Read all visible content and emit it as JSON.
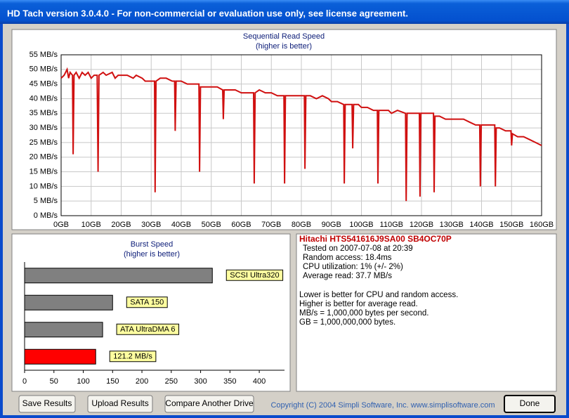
{
  "window": {
    "title": "HD Tach version 3.0.4.0  - For non-commercial or evaluation use only, see license agreement."
  },
  "chart_data": [
    {
      "type": "line",
      "title": "Sequential Read Speed",
      "subtitle": "(higher is better)",
      "color": "#d01010",
      "grid": true,
      "xlim": [
        0,
        160
      ],
      "ylim": [
        0,
        55
      ],
      "xticks": [
        {
          "value": 0,
          "label": "0GB"
        },
        {
          "value": 10,
          "label": "10GB"
        },
        {
          "value": 20,
          "label": "20GB"
        },
        {
          "value": 30,
          "label": "30GB"
        },
        {
          "value": 40,
          "label": "40GB"
        },
        {
          "value": 50,
          "label": "50GB"
        },
        {
          "value": 60,
          "label": "60GB"
        },
        {
          "value": 70,
          "label": "70GB"
        },
        {
          "value": 80,
          "label": "80GB"
        },
        {
          "value": 90,
          "label": "90GB"
        },
        {
          "value": 100,
          "label": "100GB"
        },
        {
          "value": 110,
          "label": "110GB"
        },
        {
          "value": 120,
          "label": "120GB"
        },
        {
          "value": 130,
          "label": "130GB"
        },
        {
          "value": 140,
          "label": "140GB"
        },
        {
          "value": 150,
          "label": "150GB"
        },
        {
          "value": 160,
          "label": "160GB"
        }
      ],
      "yticks": [
        {
          "value": 0,
          "label": "0 MB/s"
        },
        {
          "value": 5,
          "label": "5 MB/s"
        },
        {
          "value": 10,
          "label": "10 MB/s"
        },
        {
          "value": 15,
          "label": "15 MB/s"
        },
        {
          "value": 20,
          "label": "20 MB/s"
        },
        {
          "value": 25,
          "label": "25 MB/s"
        },
        {
          "value": 30,
          "label": "30 MB/s"
        },
        {
          "value": 35,
          "label": "35 MB/s"
        },
        {
          "value": 40,
          "label": "40 MB/s"
        },
        {
          "value": 45,
          "label": "45 MB/s"
        },
        {
          "value": 50,
          "label": "50 MB/s"
        },
        {
          "value": 55,
          "label": "55 MB/s"
        }
      ],
      "x": [
        0,
        1,
        2,
        2.5,
        3,
        3.8,
        4,
        4.3,
        5,
        6,
        7,
        8,
        9,
        10,
        11,
        12,
        12.3,
        12.6,
        14,
        15,
        17,
        18,
        19,
        20,
        22,
        24,
        25,
        27,
        28,
        30,
        31.1,
        31.3,
        31.6,
        33,
        35,
        37,
        37.8,
        38,
        38.3,
        40,
        42,
        44,
        45.9,
        46.1,
        46.4,
        48,
        50,
        52,
        53.8,
        54,
        54.3,
        56,
        58,
        60,
        62,
        64.1,
        64.3,
        64.6,
        66,
        68,
        70,
        72,
        74.2,
        74.4,
        74.7,
        76,
        78,
        80,
        81,
        81.2,
        81.5,
        83,
        85,
        87,
        89,
        90,
        92,
        94.1,
        94.3,
        94.6,
        96,
        96.9,
        97.1,
        97.4,
        99,
        100,
        102,
        104,
        105.3,
        105.5,
        105.8,
        107,
        109,
        110,
        112,
        114.7,
        114.9,
        115.2,
        117,
        119.3,
        119.5,
        119.8,
        122,
        124,
        124.2,
        124.5,
        126,
        128,
        130,
        132,
        134,
        136,
        138,
        139.4,
        139.6,
        139.9,
        141,
        143,
        144.4,
        144.6,
        144.9,
        146,
        148,
        149.8,
        150,
        150.3,
        152,
        154,
        156,
        158,
        160
      ],
      "values": [
        47,
        48,
        50,
        47,
        49,
        48,
        21,
        48,
        49,
        47,
        49,
        48,
        49,
        47,
        48,
        48,
        15,
        48,
        49,
        48,
        49,
        47,
        48,
        48,
        48,
        47,
        48,
        47,
        46,
        46,
        46,
        8,
        46,
        47,
        47,
        46,
        46,
        29,
        46,
        46,
        45,
        45,
        45,
        15,
        44,
        44,
        44,
        44,
        43,
        33,
        43,
        43,
        43,
        42,
        42,
        42,
        11,
        42,
        43,
        42,
        42,
        41,
        41,
        11,
        41,
        41,
        41,
        41,
        41,
        16,
        41,
        41,
        40,
        41,
        40,
        39,
        39,
        38,
        11,
        38,
        38,
        38,
        23,
        38,
        38,
        37,
        37,
        36,
        36,
        11,
        36,
        36,
        36,
        35,
        36,
        35,
        5,
        35,
        35,
        35,
        6.5,
        35,
        35,
        35,
        8,
        34,
        34,
        33,
        33,
        33,
        33,
        32,
        31,
        31,
        10,
        31,
        31,
        31,
        31,
        10,
        30,
        30,
        29,
        29,
        24,
        28,
        27,
        27,
        26,
        25,
        24
      ]
    },
    {
      "type": "hbar",
      "title": "Burst Speed",
      "subtitle": "(higher is better)",
      "categories": [
        "SCSI Ultra320",
        "SATA 150",
        "ATA UltraDMA 6",
        null
      ],
      "values": [
        320,
        150,
        133,
        121.2
      ],
      "value_labels": [
        null,
        null,
        null,
        "121.2 MB/s"
      ],
      "colors": [
        "#808080",
        "#808080",
        "#808080",
        "#ff0000"
      ],
      "label_color": "#ffffa0",
      "xlim": [
        0,
        443
      ],
      "xticks": [
        0,
        50,
        100,
        150,
        200,
        250,
        300,
        350,
        400
      ]
    }
  ],
  "drive_info": {
    "name": "Hitachi HTS541616J9SA00 SB4OC70P",
    "details": [
      "Tested on 2007-07-08 at 20:39",
      "Random access: 18.4ms",
      "CPU utilization: 1% (+/- 2%)",
      "Average read: 37.7 MB/s"
    ],
    "notes": [
      "Lower is better for CPU and random access.",
      "Higher is better for average read.",
      "MB/s = 1,000,000 bytes per second.",
      "GB = 1,000,000,000 bytes."
    ]
  },
  "buttons": [
    "Save Results",
    "Upload Results",
    "Compare Another Drive",
    "Done"
  ],
  "copyright": "Copyright (C) 2004 Simpli Software, Inc. www.simplisoftware.com"
}
